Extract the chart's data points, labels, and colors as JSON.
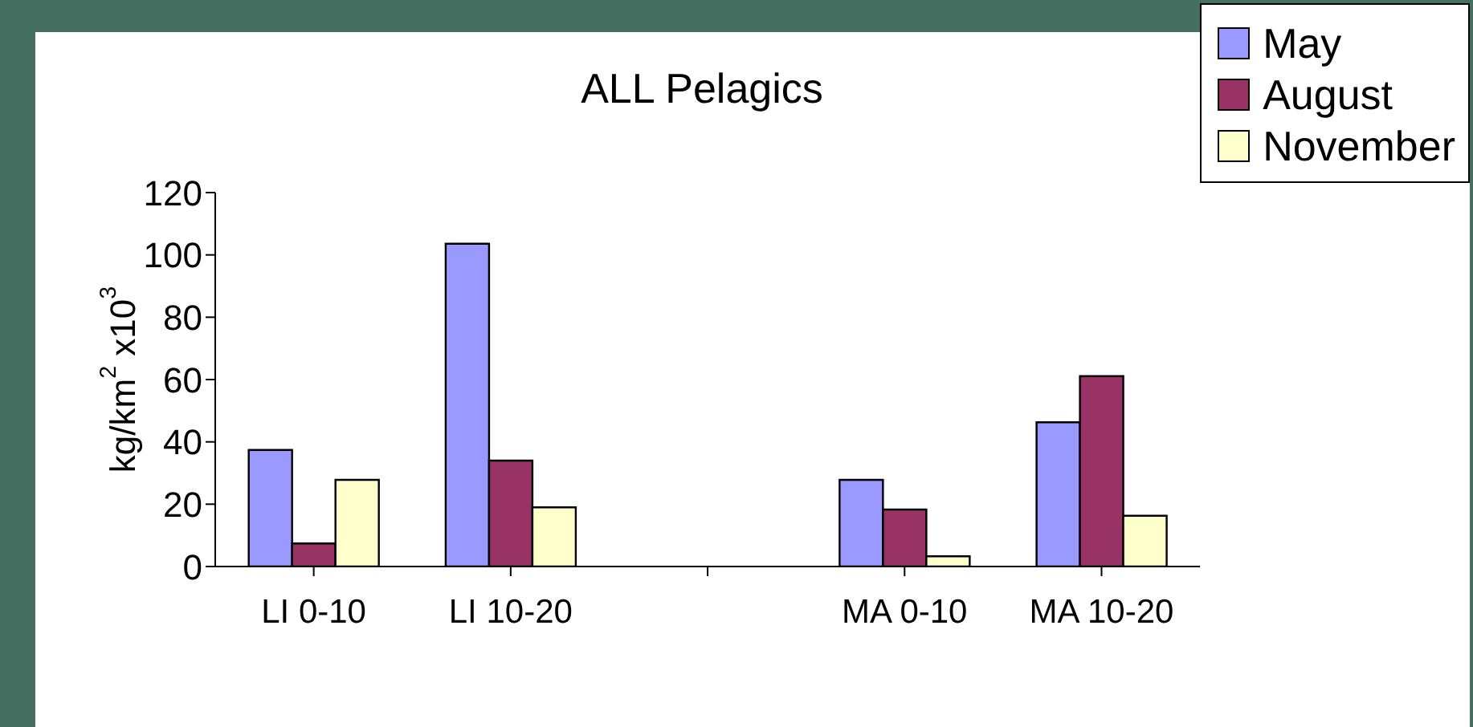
{
  "chart_data": {
    "type": "bar",
    "title": "ALL Pelagics",
    "ylabel": "kg/km$^{2}$ x10$^{3}$",
    "categories": [
      "LI 0-10",
      "LI 10-20",
      null,
      "MA 0-10",
      "MA 10-20"
    ],
    "series": [
      {
        "name": "May",
        "color": "#9999ff",
        "values": [
          37.4,
          103.6,
          null,
          27.8,
          46.3
        ]
      },
      {
        "name": "August",
        "color": "#993366",
        "values": [
          7.4,
          34,
          null,
          18.3,
          61.1
        ]
      },
      {
        "name": "November",
        "color": "#ffffcc",
        "values": [
          27.8,
          19,
          null,
          3.3,
          16.3
        ]
      }
    ],
    "ylim": [
      0,
      120
    ],
    "yticks": [
      0,
      20,
      40,
      60,
      80,
      100,
      120
    ],
    "grid": false,
    "legend": "top right"
  }
}
